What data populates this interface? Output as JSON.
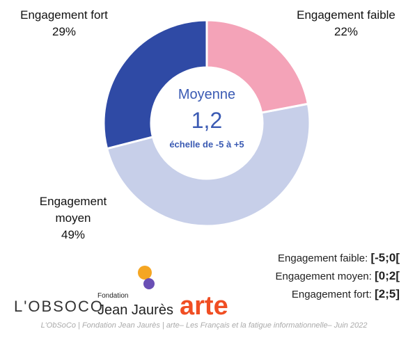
{
  "chart_data": {
    "type": "pie",
    "categories": [
      "Engagement faible",
      "Engagement moyen",
      "Engagement fort"
    ],
    "values": [
      22,
      49,
      29
    ],
    "value_labels": [
      "22%",
      "49%",
      "29%"
    ],
    "colors": [
      "#f4a3b8",
      "#c7cfe9",
      "#2f4aa5"
    ],
    "center": {
      "title": "Moyenne",
      "value": "1,2",
      "note": "échelle de -5 à +5"
    },
    "legend": [
      {
        "label": "Engagement faible:",
        "range": "[-5;0["
      },
      {
        "label": "Engagement moyen:",
        "range": "[0;2["
      },
      {
        "label": "Engagement fort:",
        "range": "[2;5]"
      }
    ]
  },
  "logos": [
    "L'OBSOCO",
    "Fondation",
    "Jean Jaurès",
    "arte"
  ],
  "footer": "L'ObSoCo | Fondation Jean Jaurès | arte– Les Français et la fatigue informationnelle– Juin 2022"
}
